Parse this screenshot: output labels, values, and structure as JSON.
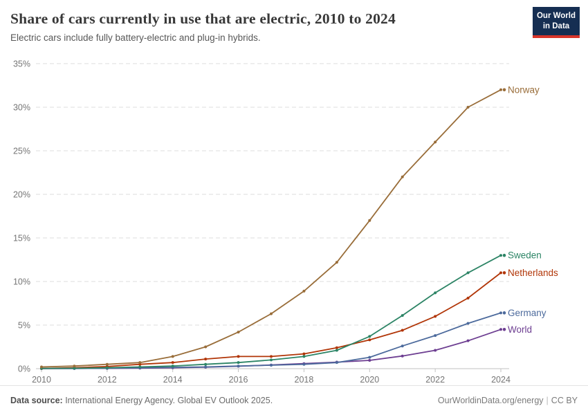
{
  "header": {
    "title": "Share of cars currently in use that are electric, 2010 to 2024",
    "subtitle": "Electric cars include fully battery-electric and plug-in hybrids.",
    "logo": {
      "line1": "Our World",
      "line2": "in Data"
    }
  },
  "chart_data": {
    "type": "line",
    "title": "Share of cars currently in use that are electric, 2010 to 2024",
    "subtitle": "Electric cars include fully battery-electric and plug-in hybrids.",
    "xlabel": "",
    "ylabel": "",
    "x": [
      2010,
      2011,
      2012,
      2013,
      2014,
      2015,
      2016,
      2017,
      2018,
      2019,
      2020,
      2021,
      2022,
      2023,
      2024
    ],
    "series": [
      {
        "name": "Norway",
        "color": "#996d39",
        "values": [
          0.2,
          0.3,
          0.5,
          0.7,
          1.4,
          2.5,
          4.2,
          6.3,
          8.9,
          12.2,
          17,
          22,
          26,
          30,
          32
        ]
      },
      {
        "name": "Sweden",
        "color": "#2c8465",
        "values": [
          0.03,
          0.05,
          0.1,
          0.2,
          0.3,
          0.5,
          0.7,
          1.0,
          1.4,
          2.1,
          3.7,
          6.1,
          8.7,
          11,
          13
        ]
      },
      {
        "name": "Netherlands",
        "color": "#b13507",
        "values": [
          0.02,
          0.1,
          0.25,
          0.5,
          0.7,
          1.1,
          1.4,
          1.4,
          1.7,
          2.4,
          3.3,
          4.4,
          6.0,
          8.1,
          11
        ]
      },
      {
        "name": "Germany",
        "color": "#4c6a9c",
        "values": [
          0.01,
          0.02,
          0.05,
          0.1,
          0.15,
          0.2,
          0.3,
          0.4,
          0.5,
          0.7,
          1.3,
          2.6,
          3.8,
          5.2,
          6.4
        ]
      },
      {
        "name": "World",
        "color": "#6d3e91",
        "values": [
          0.01,
          0.02,
          0.03,
          0.06,
          0.1,
          0.17,
          0.28,
          0.42,
          0.58,
          0.75,
          0.95,
          1.45,
          2.1,
          3.2,
          4.5
        ]
      }
    ],
    "xlim": [
      2010,
      2024
    ],
    "ylim": [
      0,
      35
    ],
    "yticks": [
      0,
      5,
      10,
      15,
      20,
      25,
      30,
      35
    ],
    "ytick_suffix": "%",
    "xticks": [
      2010,
      2012,
      2014,
      2016,
      2018,
      2020,
      2022,
      2024
    ],
    "grid": "horizontal-dashed",
    "legend_position": "right-end-of-line-labels",
    "colors": {
      "gridline": "#dddddd",
      "axis_line": "#c2c2c2",
      "tick_label": "#757575"
    }
  },
  "footer": {
    "source_label": "Data source:",
    "source_text": " International Energy Agency. Global EV Outlook 2025.",
    "site_link": "OurWorldinData.org/energy",
    "separator": "|",
    "license": "CC BY"
  }
}
